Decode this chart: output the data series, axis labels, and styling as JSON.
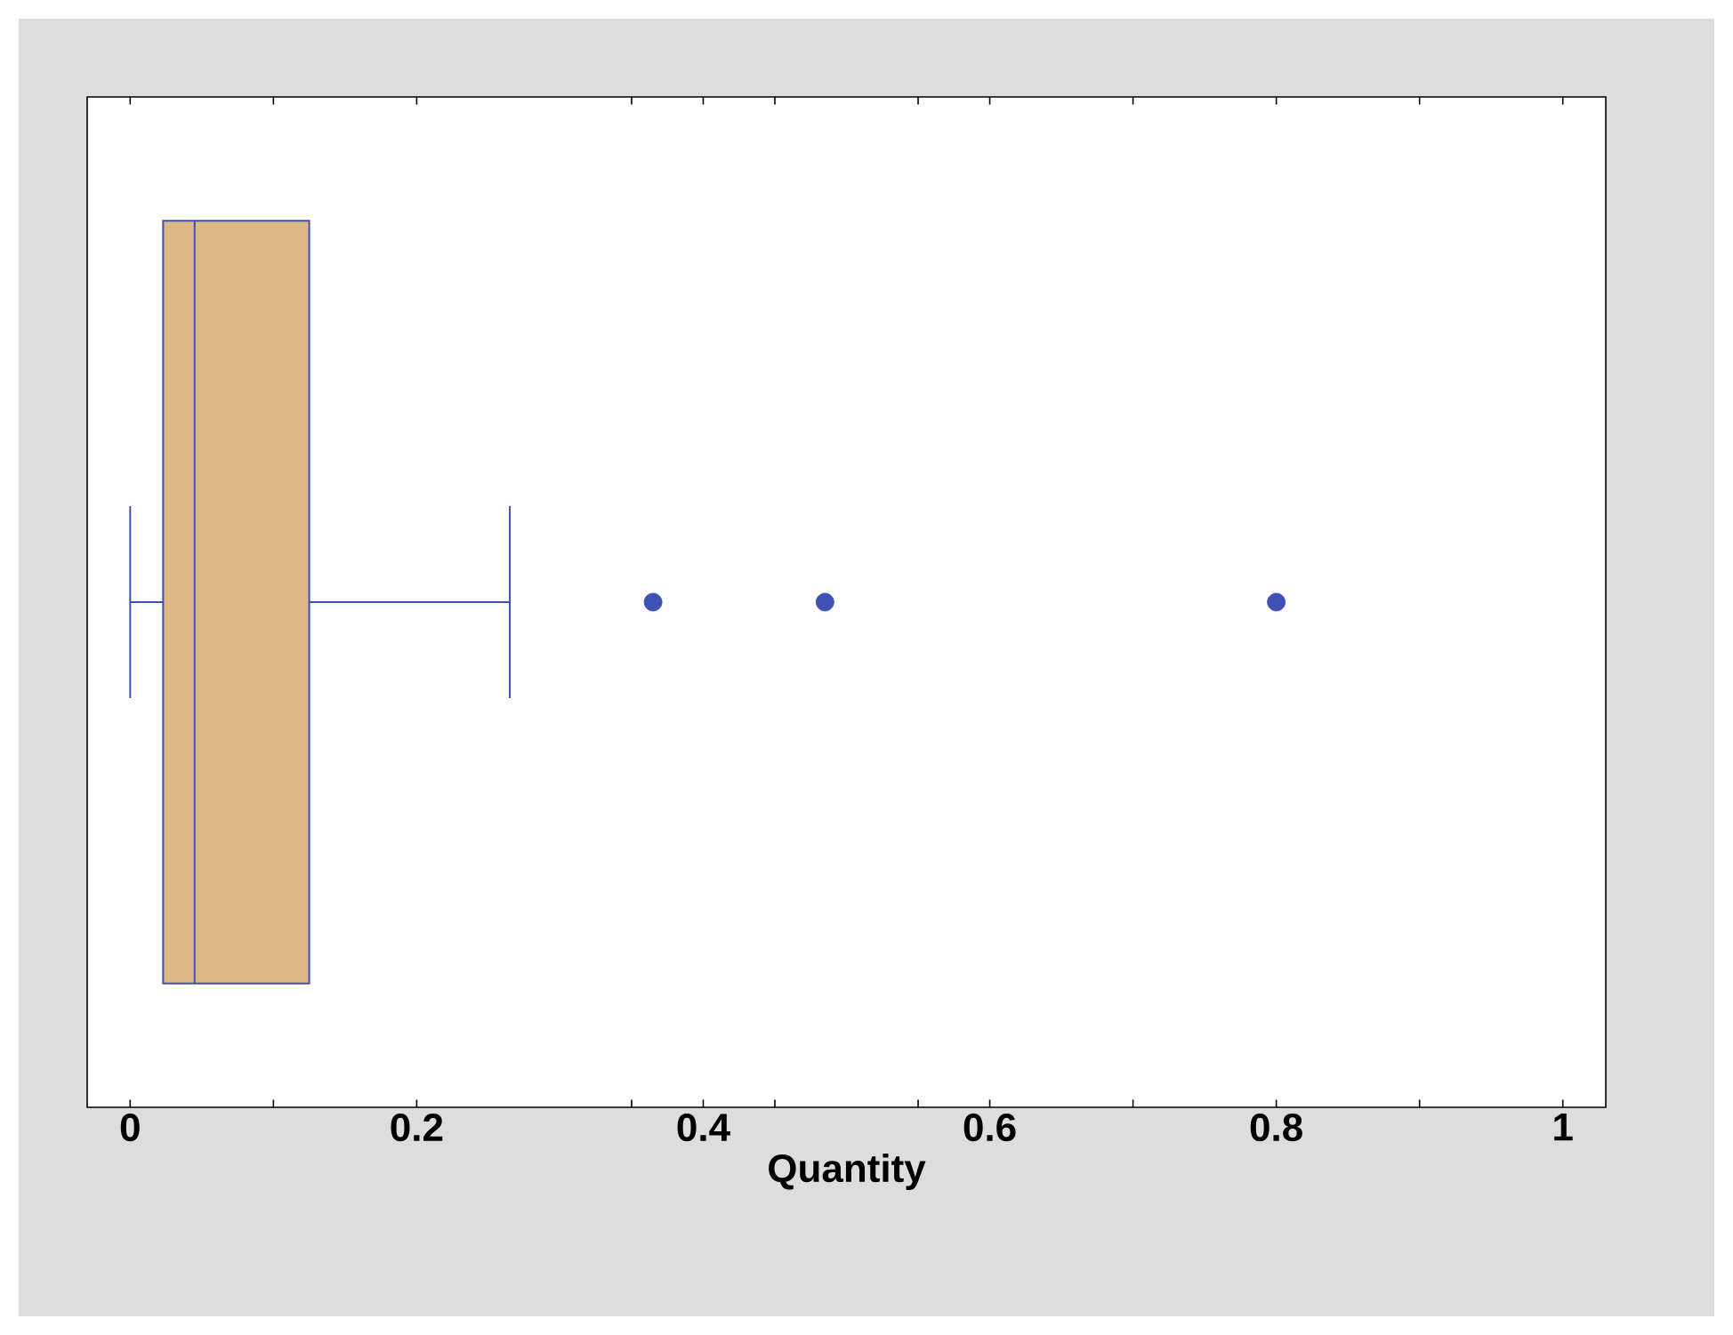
{
  "chart_data": {
    "type": "box",
    "orientation": "horizontal",
    "xlabel": "Quantity",
    "categories": [
      null
    ],
    "color": "#ddb887",
    "boxes": [
      {
        "low": 0,
        "q1": 0.023,
        "median": 0.045,
        "q3": 0.125,
        "high": 0.265,
        "outliers": [
          0.365,
          0.485,
          0.8
        ]
      }
    ],
    "xlim": [
      -0.03,
      1.03
    ],
    "xticks": [
      0,
      {
        "value": 0.1,
        "label": null
      },
      0.2,
      {
        "value": 0.35,
        "label": null
      },
      0.4,
      {
        "value": 0.45,
        "label": null
      },
      {
        "value": 0.55,
        "label": null
      },
      0.6,
      {
        "value": 0.7,
        "label": null
      },
      0.8,
      {
        "value": 0.9,
        "label": null
      },
      1
    ]
  }
}
